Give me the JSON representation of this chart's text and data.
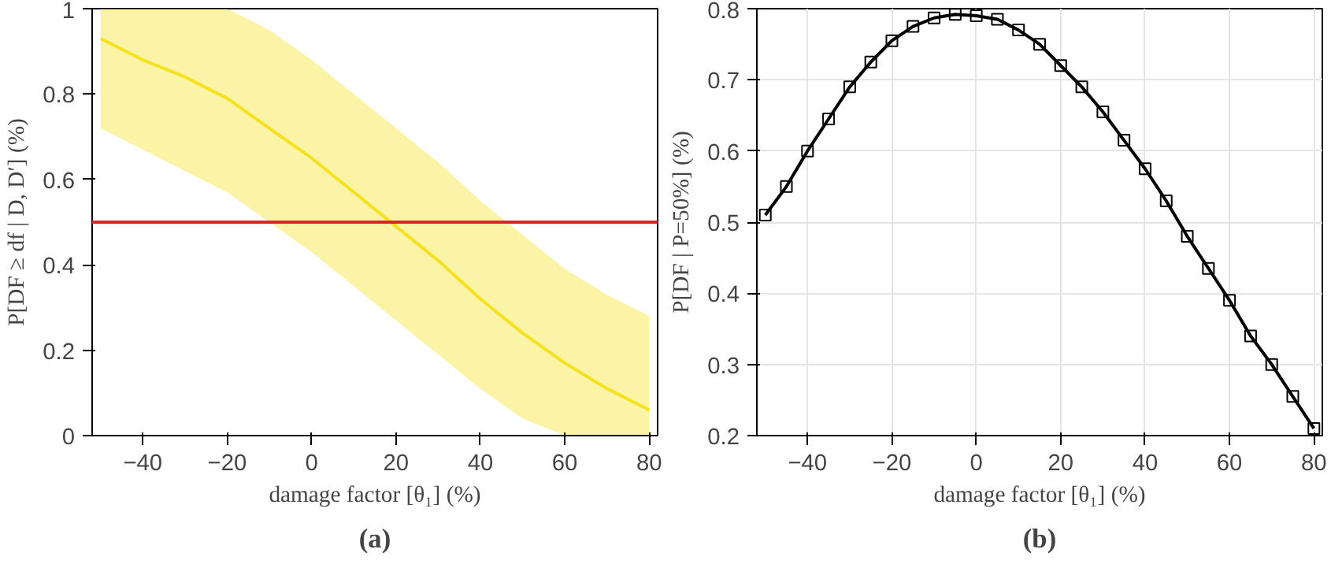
{
  "chart_data": [
    {
      "type": "line",
      "title": "(a)",
      "xlabel": "damage factor [θ₁] (%)",
      "ylabel": "P[DF ≥ df | D, D′] (%)",
      "x": [
        -50,
        -40,
        -30,
        -20,
        -10,
        0,
        10,
        20,
        30,
        40,
        50,
        60,
        70,
        80
      ],
      "xlim": [
        -52,
        82
      ],
      "ylim": [
        0,
        1
      ],
      "xticks": [
        -40,
        -20,
        0,
        20,
        40,
        60,
        80
      ],
      "yticks": [
        0,
        0.2,
        0.4,
        0.6,
        0.8,
        1
      ],
      "series": [
        {
          "color": "#f5e11e",
          "values": [
            0.93,
            0.88,
            0.84,
            0.79,
            0.72,
            0.65,
            0.57,
            0.49,
            0.41,
            0.32,
            0.24,
            0.17,
            0.11,
            0.06
          ],
          "lower": [
            0.72,
            0.67,
            0.62,
            0.57,
            0.5,
            0.43,
            0.35,
            0.27,
            0.19,
            0.11,
            0.04,
            0,
            0,
            0
          ],
          "upper": [
            1,
            1,
            1,
            1,
            0.95,
            0.88,
            0.8,
            0.72,
            0.64,
            0.55,
            0.47,
            0.39,
            0.33,
            0.28
          ]
        }
      ],
      "ref_lines": [
        {
          "axis": "y",
          "value": 0.5,
          "color": "#d62728"
        }
      ]
    },
    {
      "type": "line",
      "title": "(b)",
      "xlabel": "damage factor [θ₁] (%)",
      "ylabel": "P[DF | P=50%] (%)",
      "x": [
        -50,
        -45,
        -40,
        -35,
        -30,
        -25,
        -20,
        -15,
        -10,
        -5,
        0,
        5,
        10,
        15,
        20,
        25,
        30,
        35,
        40,
        45,
        50,
        55,
        60,
        65,
        70,
        75,
        80
      ],
      "xlim": [
        -52,
        82
      ],
      "ylim": [
        0.2,
        0.8
      ],
      "xticks": [
        -40,
        -20,
        0,
        20,
        40,
        60,
        80
      ],
      "yticks": [
        0.2,
        0.3,
        0.4,
        0.5,
        0.6,
        0.7,
        0.8
      ],
      "grid": true,
      "marker": "square",
      "series": [
        {
          "color": "#000000",
          "values": [
            0.51,
            0.55,
            0.6,
            0.645,
            0.69,
            0.725,
            0.755,
            0.775,
            0.787,
            0.792,
            0.79,
            0.785,
            0.77,
            0.75,
            0.72,
            0.69,
            0.655,
            0.615,
            0.575,
            0.53,
            0.48,
            0.435,
            0.39,
            0.34,
            0.3,
            0.255,
            0.21
          ]
        }
      ]
    }
  ]
}
